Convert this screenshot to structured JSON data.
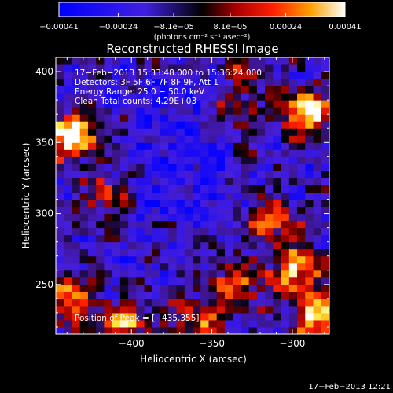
{
  "chart_data": {
    "type": "heatmap",
    "title": "Reconstructed RHESSI Image",
    "xlabel": "Heliocentric X (arcsec)",
    "ylabel": "Heliocentric Y (arcsec)",
    "xlim": [
      -447,
      -277
    ],
    "ylim": [
      215,
      410
    ],
    "x_ticks": [
      -400,
      -350,
      -300
    ],
    "x_tick_labels": [
      "−400",
      "−350",
      "−300"
    ],
    "y_ticks": [
      250,
      300,
      350,
      400
    ],
    "y_tick_labels": [
      "250",
      "300",
      "350",
      "400"
    ],
    "colorbar": {
      "min": -0.00041,
      "max": 0.00041,
      "ticks": [
        -0.00041,
        -0.00024,
        -8.1e-05,
        8.1e-05,
        0.00024,
        0.00041
      ],
      "tick_labels": [
        "−0.00041",
        "−0.00024",
        "−8.1e−05",
        "8.1e−05",
        "0.00024",
        "0.00041"
      ],
      "unit_line": "(photons cm⁻² s⁻¹ asec⁻²)"
    },
    "annotations": [
      "17−Feb−2013 15:33:48.000 to 15:36:24.000",
      "Detectors: 3F 5F 6F 7F 8F 9F, Att 1",
      "Energy Range: 25.0 − 50.0 keV",
      "Clean     Total counts: 4.29E+03"
    ],
    "peak_label": "Position of Peak = [−435,355]",
    "peak_position": [
      -435,
      355
    ],
    "hotspots": [
      {
        "x": -437,
        "y": 355,
        "intensity": 1.0
      },
      {
        "x": -290,
        "y": 372,
        "intensity": 0.9
      },
      {
        "x": -283,
        "y": 225,
        "intensity": 0.8
      },
      {
        "x": -297,
        "y": 258,
        "intensity": 0.75
      },
      {
        "x": -335,
        "y": 250,
        "intensity": 0.6
      },
      {
        "x": -440,
        "y": 240,
        "intensity": 0.7
      },
      {
        "x": -405,
        "y": 222,
        "intensity": 0.6
      },
      {
        "x": -340,
        "y": 370,
        "intensity": 0.45
      },
      {
        "x": -312,
        "y": 295,
        "intensity": 0.55
      },
      {
        "x": -360,
        "y": 225,
        "intensity": 0.5
      },
      {
        "x": -415,
        "y": 310,
        "intensity": 0.4
      },
      {
        "x": -330,
        "y": 400,
        "intensity": 0.35
      }
    ]
  },
  "timestamp": "17−Feb−2013 12:21"
}
